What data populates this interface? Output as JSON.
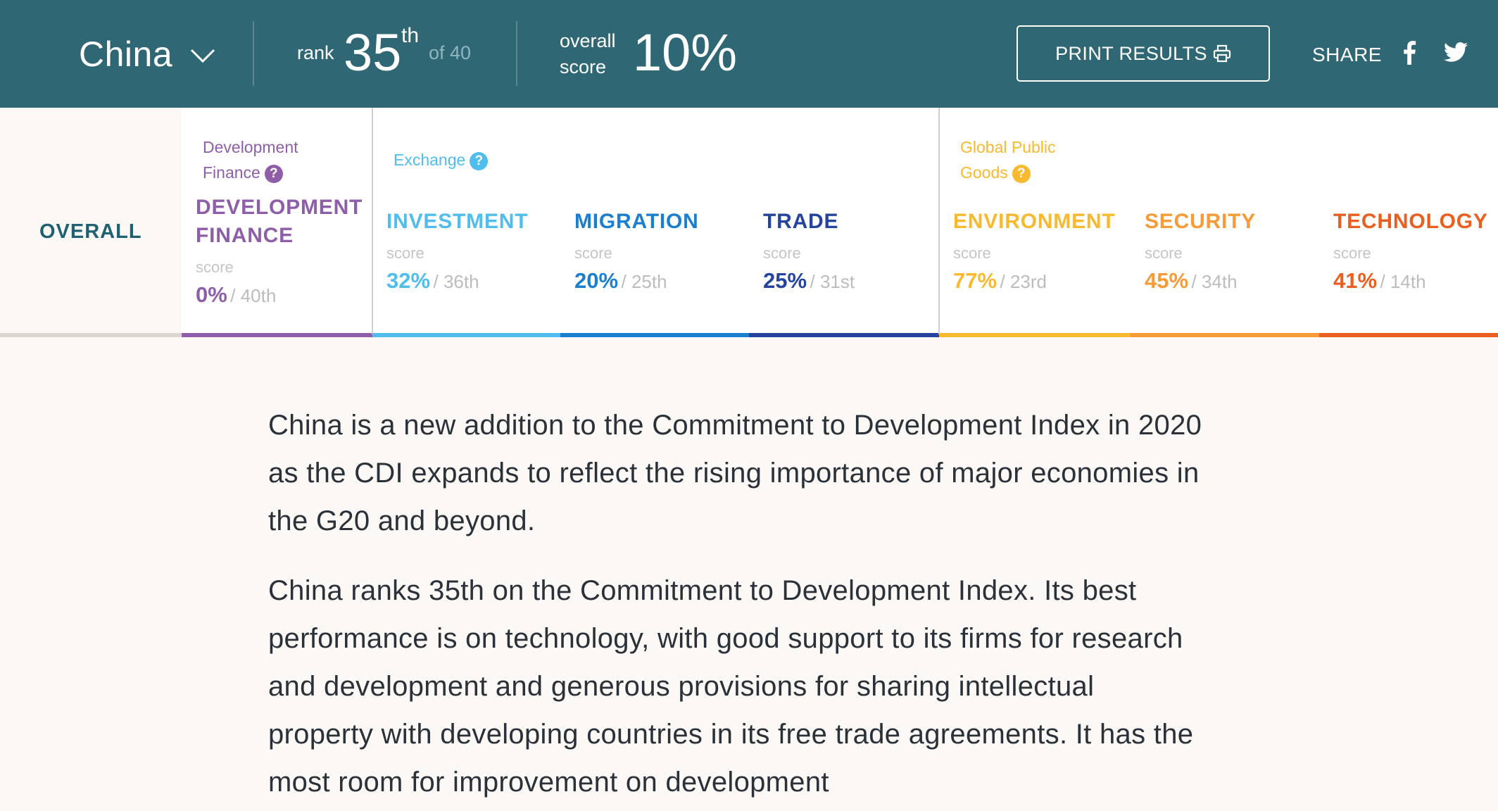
{
  "header": {
    "country": "China",
    "rank_label": "rank",
    "rank_value": "35",
    "rank_suffix": "th",
    "rank_of": "of 40",
    "score_label_line1": "overall",
    "score_label_line2": "score",
    "score_value": "10%",
    "print_label": "PRINT RESULTS",
    "share_label": "SHARE"
  },
  "tabs": {
    "overall_label": "OVERALL",
    "groups": {
      "development_finance": "Development Finance",
      "exchange": "Exchange",
      "global_public_goods": "Global Public Goods"
    },
    "help_glyph": "?",
    "score_label": "score",
    "categories": [
      {
        "title": "DEVELOPMENT FINANCE",
        "pct": "0%",
        "rank": "/ 40th",
        "color": "#8e5ea9"
      },
      {
        "title": "INVESTMENT",
        "pct": "32%",
        "rank": "/ 36th",
        "color": "#4fbdee"
      },
      {
        "title": "MIGRATION",
        "pct": "20%",
        "rank": "/ 25th",
        "color": "#1a7fcf"
      },
      {
        "title": "TRADE",
        "pct": "25%",
        "rank": "/ 31st",
        "color": "#25449f"
      },
      {
        "title": "ENVIRONMENT",
        "pct": "77%",
        "rank": "/ 23rd",
        "color": "#f9b92e"
      },
      {
        "title": "SECURITY",
        "pct": "45%",
        "rank": "/ 34th",
        "color": "#f89a35"
      },
      {
        "title": "TECHNOLOGY",
        "pct": "41%",
        "rank": "/ 14th",
        "color": "#ec5e1f"
      }
    ]
  },
  "content": {
    "paragraphs": [
      "China is a new addition to the Commitment to Development Index in 2020 as the CDI expands to reflect the rising importance of major economies in the G20 and beyond.",
      "China ranks 35th on the Commitment to Development Index. Its best performance is on technology, with good support to its firms for research and development and generous provisions for sharing intellectual property with developing countries in its free trade agreements. It has the most room for improvement on development"
    ]
  },
  "colors": {
    "header_bg": "#2f6874",
    "overall_text": "#1e6170",
    "page_bg": "#fbf8f6"
  }
}
